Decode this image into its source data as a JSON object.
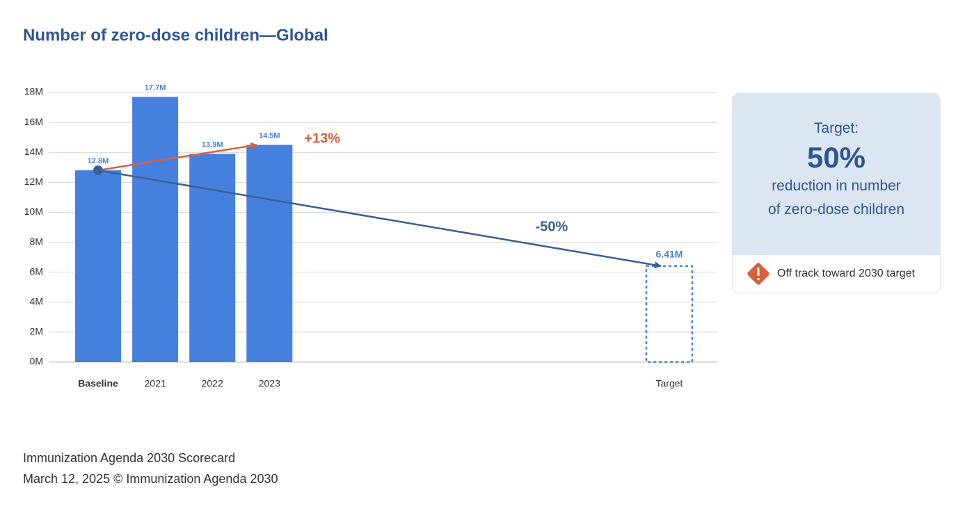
{
  "chart_data": {
    "type": "bar",
    "title": "Number of zero-dose children—Global",
    "categories": [
      "Baseline",
      "2021",
      "2022",
      "2023",
      null,
      null,
      null,
      null,
      null,
      null,
      "Target"
    ],
    "values": [
      12800000,
      17700000,
      13900000,
      14500000,
      null,
      null,
      null,
      null,
      null,
      null,
      null
    ],
    "value_labels": [
      "12.8M",
      "17.7M",
      "13.9M",
      "14.5M",
      null,
      null,
      null,
      null,
      null,
      null,
      null
    ],
    "color": "#4680de",
    "target": {
      "value": 6410000,
      "value_label": "6.41M"
    },
    "annotations": {
      "increase": "+13%",
      "decrease": "-50%"
    },
    "ylim": [
      0,
      18000000
    ],
    "yticks": [
      {
        "value": 0,
        "label": "0M"
      },
      {
        "value": 2000000,
        "label": "2M"
      },
      {
        "value": 4000000,
        "label": "4M"
      },
      {
        "value": 6000000,
        "label": "6M"
      },
      {
        "value": 8000000,
        "label": "8M"
      },
      {
        "value": 10000000,
        "label": "10M"
      },
      {
        "value": 12000000,
        "label": "12M"
      },
      {
        "value": 14000000,
        "label": "14M"
      },
      {
        "value": 16000000,
        "label": "16M"
      },
      {
        "value": 18000000,
        "label": "18M"
      }
    ],
    "grid": true
  },
  "panel": {
    "heading": "Target:",
    "big": "50%",
    "line1": "reduction in number",
    "line2": "of zero-dose children",
    "status": "Off track toward 2030 target"
  },
  "footer": [
    "Immunization Agenda 2030 Scorecard",
    "March 12, 2025 © Immunization Agenda 2030"
  ]
}
